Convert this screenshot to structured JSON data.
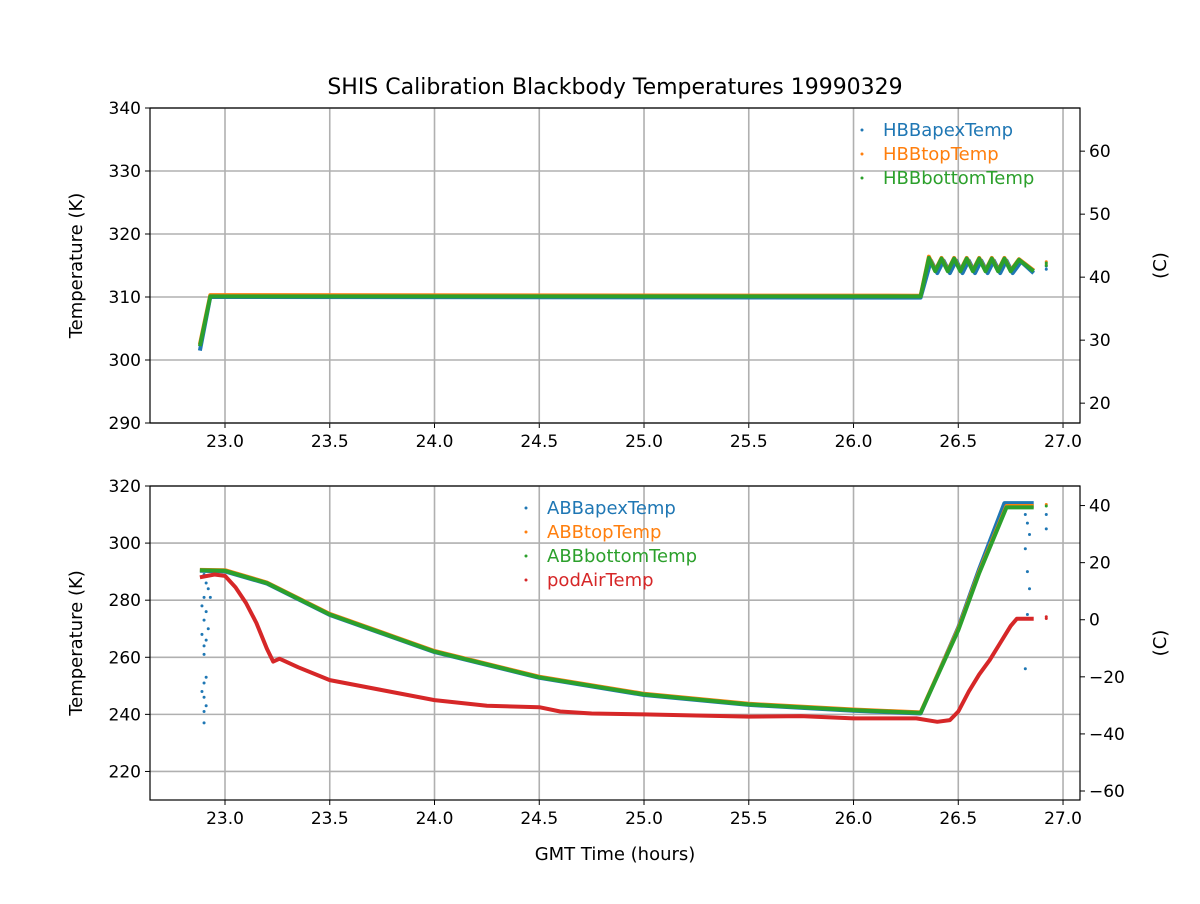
{
  "chart_data": [
    {
      "type": "line",
      "title": "SHIS Calibration Blackbody Temperatures 19990329",
      "xlabel": "",
      "ylabel": "Temperature (K)",
      "ylabel_right": "(C)",
      "xlim": [
        22.642,
        27.081
      ],
      "ylim": [
        290,
        340
      ],
      "ylim_right_c": [
        16.85,
        66.85
      ],
      "xticks": [
        "23.0",
        "23.5",
        "24.0",
        "24.5",
        "25.0",
        "25.5",
        "26.0",
        "26.5",
        "27.0"
      ],
      "yticks": [
        "290",
        "300",
        "310",
        "320",
        "330",
        "340"
      ],
      "yticks_right": [
        "20",
        "30",
        "40",
        "50",
        "60"
      ],
      "grid": true,
      "legend_position": "top-right",
      "series": [
        {
          "name": "HBBapexTemp",
          "color": "#1f77b4",
          "points": [
            [
              22.88,
              301.5
            ],
            [
              22.93,
              310
            ],
            [
              26.32,
              309.9
            ],
            [
              26.37,
              315.8
            ],
            [
              26.4,
              313.8
            ],
            [
              26.43,
              315.8
            ],
            [
              26.46,
              313.8
            ],
            [
              26.49,
              315.8
            ],
            [
              26.52,
              313.8
            ],
            [
              26.55,
              315.8
            ],
            [
              26.58,
              313.8
            ],
            [
              26.61,
              315.8
            ],
            [
              26.64,
              313.8
            ],
            [
              26.67,
              315.8
            ],
            [
              26.7,
              313.8
            ],
            [
              26.73,
              315.8
            ],
            [
              26.76,
              313.8
            ],
            [
              26.8,
              315.6
            ],
            [
              26.86,
              313.8
            ]
          ],
          "extra": [
            [
              26.92,
              314.4
            ],
            [
              26.92,
              314.9
            ]
          ]
        },
        {
          "name": "HBBtopTemp",
          "color": "#ff7f0e",
          "points": [
            [
              22.88,
              302.5
            ],
            [
              22.93,
              310.3
            ],
            [
              26.32,
              310.2
            ],
            [
              26.36,
              316.4
            ],
            [
              26.39,
              314.2
            ],
            [
              26.42,
              316.2
            ],
            [
              26.45,
              314.2
            ],
            [
              26.48,
              316.2
            ],
            [
              26.51,
              314.2
            ],
            [
              26.54,
              316.2
            ],
            [
              26.57,
              314.2
            ],
            [
              26.6,
              316.2
            ],
            [
              26.63,
              314.2
            ],
            [
              26.66,
              316.2
            ],
            [
              26.69,
              314.2
            ],
            [
              26.72,
              316.2
            ],
            [
              26.75,
              314.2
            ],
            [
              26.79,
              316
            ],
            [
              26.86,
              314.2
            ]
          ],
          "extra": [
            [
              26.92,
              315.2
            ],
            [
              26.92,
              315.6
            ]
          ]
        },
        {
          "name": "HBBbottomTemp",
          "color": "#2ca02c",
          "points": [
            [
              22.88,
              302.2
            ],
            [
              22.93,
              310.1
            ],
            [
              26.32,
              310.1
            ],
            [
              26.36,
              316.2
            ],
            [
              26.39,
              314.1
            ],
            [
              26.42,
              316.1
            ],
            [
              26.45,
              314.1
            ],
            [
              26.48,
              316.1
            ],
            [
              26.51,
              314.1
            ],
            [
              26.54,
              316.1
            ],
            [
              26.57,
              314.1
            ],
            [
              26.6,
              316.1
            ],
            [
              26.63,
              314.1
            ],
            [
              26.66,
              316.1
            ],
            [
              26.69,
              314.1
            ],
            [
              26.72,
              316.1
            ],
            [
              26.75,
              314.1
            ],
            [
              26.79,
              315.9
            ],
            [
              26.86,
              314.1
            ]
          ],
          "extra": [
            [
              26.92,
              315
            ],
            [
              26.92,
              315.4
            ]
          ]
        }
      ]
    },
    {
      "type": "line",
      "xlabel": "GMT Time (hours)",
      "ylabel": "Temperature (K)",
      "ylabel_right": "(C)",
      "xlim": [
        22.642,
        27.081
      ],
      "ylim": [
        210,
        320
      ],
      "ylim_right_c": [
        -63.15,
        46.85
      ],
      "xticks": [
        "23.0",
        "23.5",
        "24.0",
        "24.5",
        "25.0",
        "25.5",
        "26.0",
        "26.5",
        "27.0"
      ],
      "yticks": [
        "220",
        "240",
        "260",
        "280",
        "300",
        "320"
      ],
      "yticks_right": [
        "-60",
        "-40",
        "-20",
        "0",
        "20",
        "40"
      ],
      "grid": true,
      "legend_position": "top-center",
      "series": [
        {
          "name": "ABBapexTemp",
          "color": "#1f77b4",
          "points": [
            [
              22.88,
              290.3
            ],
            [
              23.0,
              290.1
            ],
            [
              23.2,
              285.8
            ],
            [
              23.5,
              274.8
            ],
            [
              24.0,
              261.8
            ],
            [
              24.5,
              252.8
            ],
            [
              25.0,
              246.8
            ],
            [
              25.5,
              243.3
            ],
            [
              26.0,
              241.3
            ],
            [
              26.32,
              240.3
            ],
            [
              26.5,
              270.5
            ],
            [
              26.6,
              291
            ],
            [
              26.72,
              314
            ],
            [
              26.86,
              314
            ]
          ],
          "extra": [
            [
              22.9,
              289
            ],
            [
              22.91,
              286
            ],
            [
              22.92,
              284
            ],
            [
              22.9,
              281
            ],
            [
              22.93,
              281
            ],
            [
              22.89,
              278
            ],
            [
              22.91,
              276
            ],
            [
              22.9,
              273
            ],
            [
              22.92,
              270
            ],
            [
              22.89,
              268
            ],
            [
              22.91,
              266
            ],
            [
              22.9,
              264
            ],
            [
              22.9,
              261
            ],
            [
              22.91,
              253
            ],
            [
              22.9,
              251
            ],
            [
              22.89,
              248
            ],
            [
              22.9,
              246
            ],
            [
              22.91,
              243
            ],
            [
              22.9,
              241
            ],
            [
              22.9,
              237
            ],
            [
              26.81,
              313
            ],
            [
              26.82,
              310
            ],
            [
              26.83,
              307
            ],
            [
              26.84,
              303
            ],
            [
              26.82,
              298
            ],
            [
              26.83,
              290
            ],
            [
              26.84,
              284
            ],
            [
              26.83,
              275
            ],
            [
              26.82,
              256
            ],
            [
              26.92,
              305
            ],
            [
              26.92,
              310
            ]
          ]
        },
        {
          "name": "ABBtopTemp",
          "color": "#ff7f0e",
          "points": [
            [
              22.88,
              290.6
            ],
            [
              23.0,
              290.5
            ],
            [
              23.2,
              286.2
            ],
            [
              23.5,
              275.2
            ],
            [
              24.0,
              262.2
            ],
            [
              24.5,
              253.2
            ],
            [
              25.0,
              247.2
            ],
            [
              25.5,
              243.7
            ],
            [
              26.0,
              241.7
            ],
            [
              26.32,
              240.7
            ],
            [
              26.5,
              270
            ],
            [
              26.6,
              290
            ],
            [
              26.73,
              313
            ],
            [
              26.86,
              313
            ]
          ],
          "extra": [
            [
              26.92,
              313.5
            ]
          ]
        },
        {
          "name": "ABBbottomTemp",
          "color": "#2ca02c",
          "points": [
            [
              22.88,
              290.5
            ],
            [
              23.0,
              290.3
            ],
            [
              23.2,
              286
            ],
            [
              23.5,
              275
            ],
            [
              24.0,
              262
            ],
            [
              24.5,
              253
            ],
            [
              25.0,
              247
            ],
            [
              25.5,
              243.5
            ],
            [
              26.0,
              241.5
            ],
            [
              26.32,
              240.5
            ],
            [
              26.5,
              269.5
            ],
            [
              26.6,
              289.5
            ],
            [
              26.73,
              312.5
            ],
            [
              26.86,
              312.5
            ]
          ],
          "extra": [
            [
              26.92,
              313
            ]
          ]
        },
        {
          "name": "podAirTemp",
          "color": "#d62728",
          "points": [
            [
              22.88,
              288
            ],
            [
              22.95,
              289
            ],
            [
              23.0,
              288.5
            ],
            [
              23.05,
              284.5
            ],
            [
              23.1,
              279
            ],
            [
              23.15,
              272
            ],
            [
              23.2,
              263
            ],
            [
              23.23,
              258.5
            ],
            [
              23.26,
              259.5
            ],
            [
              23.35,
              256.5
            ],
            [
              23.5,
              252
            ],
            [
              23.75,
              248.5
            ],
            [
              24.0,
              245
            ],
            [
              24.25,
              243
            ],
            [
              24.5,
              242.5
            ],
            [
              24.6,
              241
            ],
            [
              24.75,
              240.3
            ],
            [
              25.0,
              240
            ],
            [
              25.25,
              239.6
            ],
            [
              25.5,
              239.2
            ],
            [
              25.75,
              239.4
            ],
            [
              26.0,
              238.6
            ],
            [
              26.3,
              238.6
            ],
            [
              26.4,
              237.4
            ],
            [
              26.46,
              238
            ],
            [
              26.5,
              241
            ],
            [
              26.55,
              248
            ],
            [
              26.6,
              254
            ],
            [
              26.65,
              259
            ],
            [
              26.7,
              265
            ],
            [
              26.75,
              271
            ],
            [
              26.78,
              273.5
            ],
            [
              26.86,
              273.5
            ]
          ],
          "extra": [
            [
              26.92,
              273.6
            ],
            [
              26.92,
              274.2
            ]
          ]
        }
      ]
    }
  ]
}
